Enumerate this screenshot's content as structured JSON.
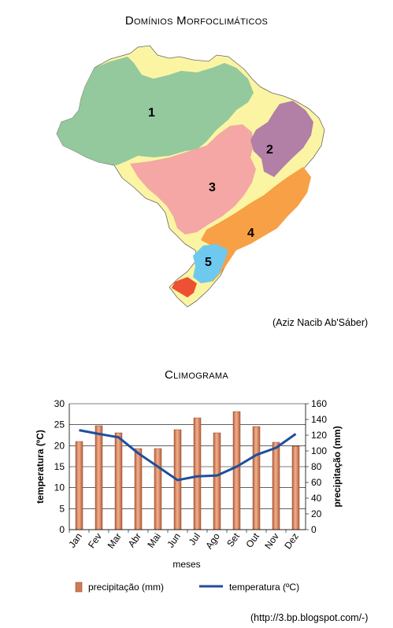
{
  "map": {
    "title": "Domínios Morfoclimáticos",
    "credit": "(Aziz Nacib Ab'Sáber)",
    "regions": [
      {
        "label": "1",
        "color": "#93c99d"
      },
      {
        "label": "2",
        "color": "#b27fa6"
      },
      {
        "label": "3",
        "color": "#f4a7a4"
      },
      {
        "label": "4",
        "color": "#f7a045"
      },
      {
        "label": "5",
        "color": "#6fc9ee"
      }
    ],
    "transition_color": "#fbf5a3",
    "south_color": "#ee5033"
  },
  "climogram": {
    "title": "Climograma",
    "credit": "(http://3.bp.blogspot.com/-)"
  },
  "chart_data": {
    "type": "bar",
    "categories": [
      "Jan",
      "Fev",
      "Mar",
      "Abr",
      "Mai",
      "Jun",
      "Jul",
      "Ago",
      "Set",
      "Out",
      "Nov",
      "Dez"
    ],
    "xlabel": "meses",
    "ylabel": "temperatura (ºC)",
    "y2label": "precipitação (mm)",
    "ylim": [
      0,
      30
    ],
    "y2lim": [
      0,
      160
    ],
    "yticks": [
      0,
      5,
      10,
      15,
      20,
      25,
      30
    ],
    "y2ticks": [
      0,
      20,
      40,
      60,
      80,
      100,
      120,
      140,
      160
    ],
    "grid": true,
    "legend_position": "bottom",
    "series": [
      {
        "name": "precipitação (mm)",
        "type": "bar",
        "axis": "y2",
        "color": "#d07a55",
        "values": [
          112,
          132,
          123,
          103,
          103,
          127,
          142,
          123,
          150,
          131,
          111,
          106
        ]
      },
      {
        "name": "temperatura (ºC)",
        "type": "line",
        "axis": "y",
        "color": "#1f4e9c",
        "values": [
          23.7,
          22.8,
          22.0,
          18.2,
          15.0,
          11.8,
          12.7,
          12.9,
          15.0,
          17.8,
          19.5,
          22.8
        ]
      }
    ]
  }
}
